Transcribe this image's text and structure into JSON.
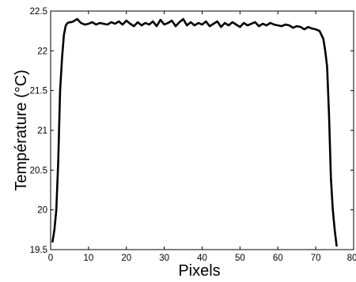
{
  "chart_data": {
    "type": "line",
    "title": "",
    "xlabel": "Pixels",
    "ylabel": "Température (°C)",
    "xlim": [
      0,
      80
    ],
    "ylim": [
      19.5,
      22.5
    ],
    "xticks": [
      "0",
      "10",
      "20",
      "30",
      "40",
      "50",
      "60",
      "70",
      "80"
    ],
    "yticks": [
      "19.5",
      "20",
      "20.5",
      "21",
      "21.5",
      "22",
      "22.5"
    ],
    "grid": false,
    "legend": "none",
    "line_color": "#000000",
    "series": [
      {
        "x": [
          0.5,
          1,
          1.5,
          2,
          2.5,
          3,
          3.5,
          4,
          4.5,
          5,
          5.5,
          6,
          7,
          8,
          9,
          10,
          11,
          12,
          13,
          14,
          15,
          16,
          17,
          18,
          19,
          20,
          21,
          22,
          23,
          24,
          25,
          26,
          27,
          28,
          29,
          30,
          31,
          32,
          33,
          34,
          35,
          36,
          37,
          38,
          39,
          40,
          41,
          42,
          43,
          44,
          45,
          46,
          47,
          48,
          49,
          50,
          51,
          52,
          53,
          54,
          55,
          56,
          57,
          58,
          59,
          60,
          61,
          62,
          63,
          64,
          65,
          66,
          67,
          68,
          69,
          70,
          71,
          72,
          72.5,
          73,
          73.5,
          74,
          74.5,
          75,
          75.5
        ],
        "y": [
          19.6,
          19.75,
          20.0,
          20.6,
          21.5,
          21.9,
          22.2,
          22.32,
          22.35,
          22.36,
          22.36,
          22.37,
          22.4,
          22.35,
          22.33,
          22.34,
          22.36,
          22.33,
          22.35,
          22.34,
          22.33,
          22.36,
          22.34,
          22.37,
          22.33,
          22.38,
          22.34,
          22.31,
          22.36,
          22.32,
          22.35,
          22.33,
          22.37,
          22.31,
          22.39,
          22.33,
          22.35,
          22.38,
          22.31,
          22.36,
          22.4,
          22.32,
          22.36,
          22.32,
          22.35,
          22.33,
          22.37,
          22.31,
          22.34,
          22.37,
          22.3,
          22.35,
          22.32,
          22.36,
          22.33,
          22.3,
          22.35,
          22.32,
          22.34,
          22.36,
          22.31,
          22.34,
          22.32,
          22.35,
          22.33,
          22.32,
          22.31,
          22.33,
          22.32,
          22.29,
          22.31,
          22.3,
          22.27,
          22.3,
          22.28,
          22.27,
          22.25,
          22.15,
          22.0,
          21.8,
          21.2,
          20.4,
          20.0,
          19.75,
          19.55
        ]
      }
    ]
  }
}
